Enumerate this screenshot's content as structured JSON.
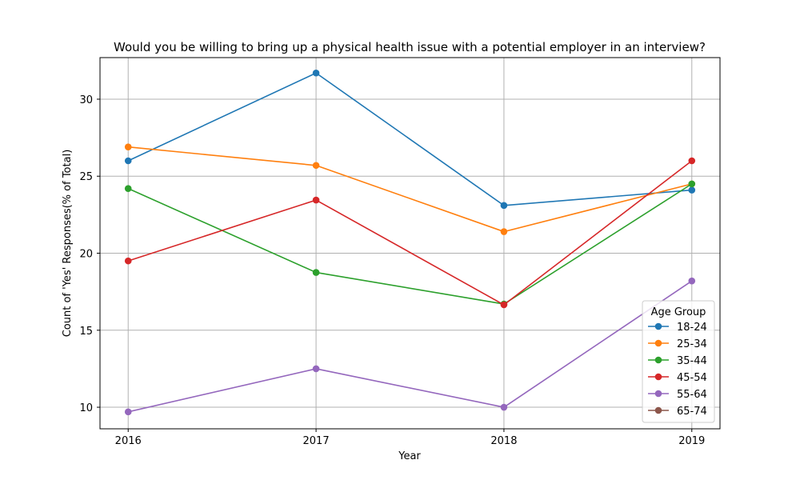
{
  "chart_data": {
    "type": "line",
    "title": "Would you be willing to bring up a physical health issue with a potential employer in an interview?",
    "xlabel": "Year",
    "ylabel": "Count of 'Yes' Responses(% of Total)",
    "x": [
      2016,
      2017,
      2018,
      2019
    ],
    "xticks": [
      "2016",
      "2017",
      "2018",
      "2019"
    ],
    "xlim": [
      2015.85,
      2019.15
    ],
    "ylim": [
      8.6,
      32.7
    ],
    "yticks": [
      "10",
      "15",
      "20",
      "25",
      "30"
    ],
    "grid": true,
    "legend": {
      "title": "Age Group",
      "position": "bottom-right"
    },
    "series": [
      {
        "name": "18-24",
        "color": "#1f77b4",
        "values": [
          26.0,
          31.7,
          23.1,
          24.1
        ]
      },
      {
        "name": "25-34",
        "color": "#ff7f0e",
        "values": [
          26.9,
          25.7,
          21.4,
          24.5
        ]
      },
      {
        "name": "35-44",
        "color": "#2ca02c",
        "values": [
          24.2,
          18.75,
          16.7,
          24.5
        ]
      },
      {
        "name": "45-54",
        "color": "#d62728",
        "values": [
          19.5,
          23.45,
          16.65,
          26.0
        ]
      },
      {
        "name": "55-64",
        "color": "#9467bd",
        "values": [
          9.7,
          12.5,
          10.0,
          18.2
        ]
      },
      {
        "name": "65-74",
        "color": "#8c564b",
        "values": [
          null,
          null,
          null,
          null
        ]
      }
    ]
  }
}
